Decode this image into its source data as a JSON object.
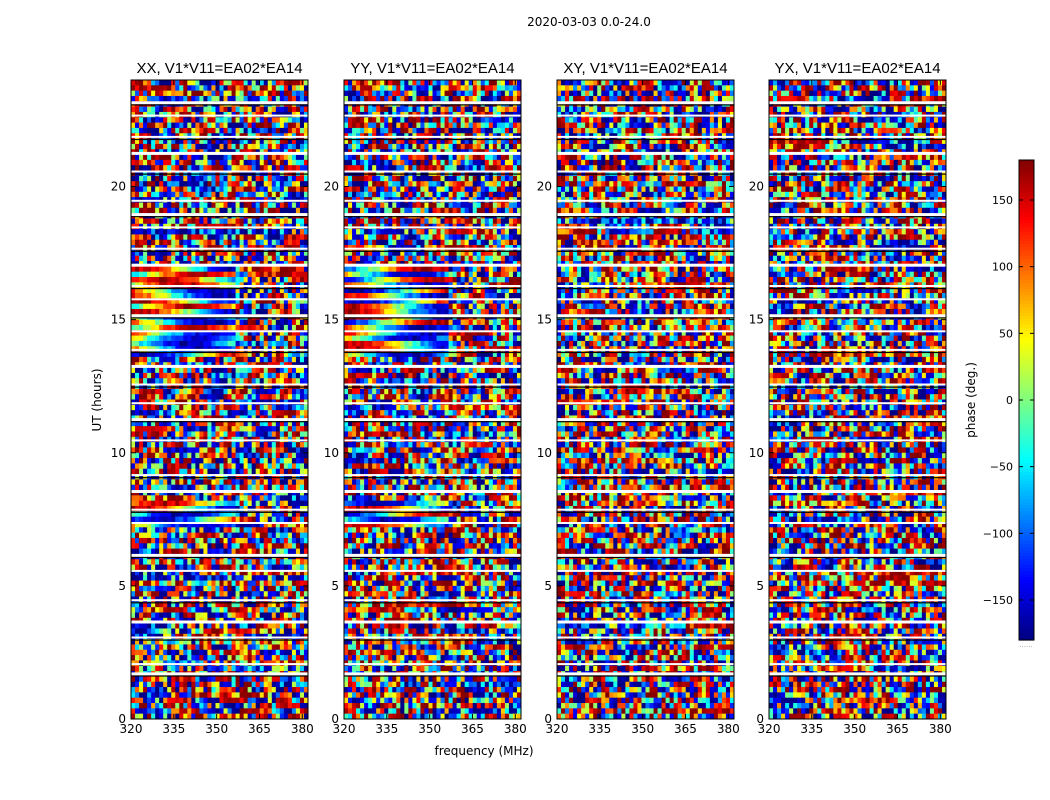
{
  "chart_data": {
    "type": "heatmap",
    "figure_title": "2020-03-03 0.0-24.0",
    "xlabel": "frequency (MHz)",
    "ylabel": "UT (hours)",
    "xlim": [
      320,
      382
    ],
    "ylim": [
      0,
      24
    ],
    "xticks": [
      320,
      335,
      350,
      365,
      380
    ],
    "yticks": [
      0,
      5,
      10,
      15,
      20
    ],
    "colormap": "jet",
    "panels": [
      {
        "title": "XX, V1*V11=EA02*EA14",
        "polarization": "XX"
      },
      {
        "title": "YY, V1*V11=EA02*EA14",
        "polarization": "YY"
      },
      {
        "title": "XY, V1*V11=EA02*EA14",
        "polarization": "XY"
      },
      {
        "title": "YX, V1*V11=EA02*EA14",
        "polarization": "YX"
      }
    ],
    "colorbar": {
      "label": "phase (deg.)",
      "range": [
        -180,
        180
      ],
      "ticks": [
        -150,
        -100,
        -50,
        0,
        50,
        100,
        150
      ],
      "tick_labels": [
        "−150",
        "−100",
        "−50",
        "0",
        "50",
        "100",
        "150"
      ]
    },
    "blank_rows_ut": [
      1.75,
      2.1,
      3.1,
      3.7,
      4.5,
      5.6,
      6.2,
      7.4,
      7.9,
      8.6,
      9.2,
      10.5,
      11.3,
      11.9,
      12.6,
      13.3,
      13.9,
      14.6,
      15.2,
      15.8,
      16.3,
      17.1,
      17.7,
      18.5,
      19.0,
      19.5,
      20.6,
      21.3,
      21.9,
      22.7,
      23.2
    ],
    "colorbar_grey_label": "......"
  }
}
